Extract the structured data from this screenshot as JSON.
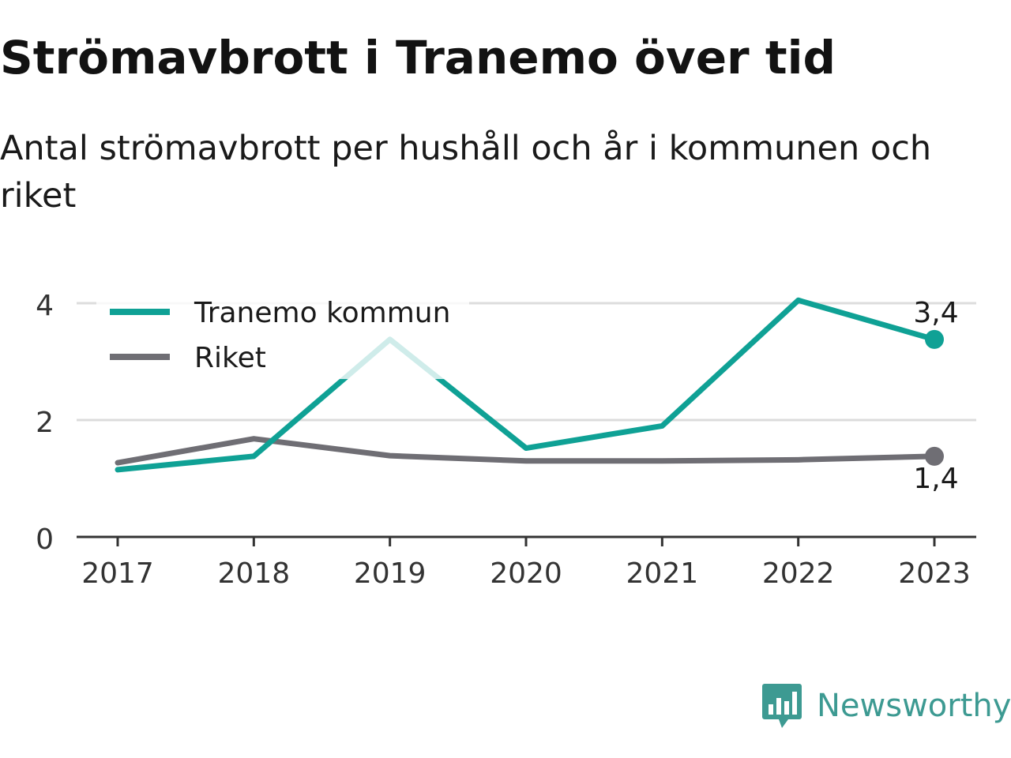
{
  "header": {
    "title": "Strömavbrott i Tranemo över tid",
    "subtitle": "Antal strömavbrott per hushåll och år i kommunen och riket"
  },
  "chart_data": {
    "type": "line",
    "x": [
      "2017",
      "2018",
      "2019",
      "2020",
      "2021",
      "2022",
      "2023"
    ],
    "series": [
      {
        "name": "Tranemo kommun",
        "color": "#0fa195",
        "values": [
          1.15,
          1.38,
          3.38,
          1.52,
          1.9,
          4.05,
          3.38
        ],
        "end_label": "3,4"
      },
      {
        "name": "Riket",
        "color": "#6f6e74",
        "values": [
          1.27,
          1.68,
          1.39,
          1.3,
          1.3,
          1.32,
          1.38
        ],
        "end_label": "1,4"
      }
    ],
    "yticks": [
      0,
      2,
      4
    ],
    "ylim": [
      0,
      4
    ],
    "grid": true,
    "legend": "top-left"
  },
  "branding": {
    "logo_icon": "bar-chart-speech-bubble-icon",
    "logo_text": "Newsworthy",
    "logo_color": "#3d9a92"
  }
}
